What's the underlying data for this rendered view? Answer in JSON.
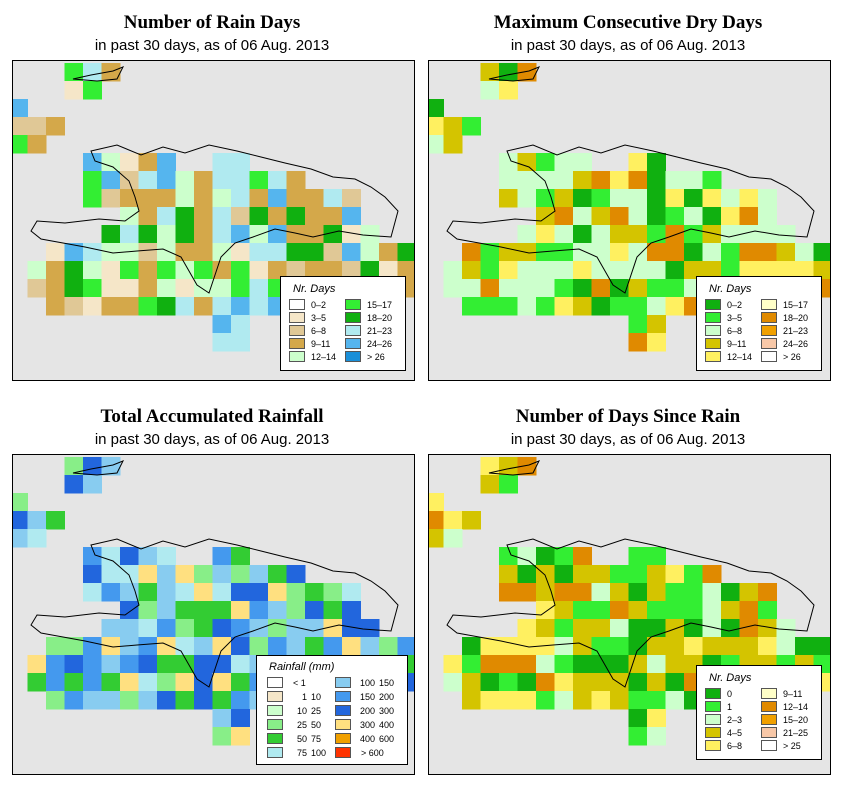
{
  "panels": [
    {
      "key": "rain_days",
      "title": "Number of Rain Days",
      "subtitle": "in past 30 days, as of  06 Aug. 2013",
      "legend_title": "Nr. Days",
      "legend": [
        {
          "label": "0–2",
          "color": "#ffffff"
        },
        {
          "label": "3–5",
          "color": "#f5e6c8"
        },
        {
          "label": "6–8",
          "color": "#e0c896"
        },
        {
          "label": "9–11",
          "color": "#d4a84a"
        },
        {
          "label": "12–14",
          "color": "#ccffcc"
        },
        {
          "label": "15–17",
          "color": "#33ee33"
        },
        {
          "label": "18–20",
          "color": "#10b010"
        },
        {
          "label": "21–23",
          "color": "#b0eaf0"
        },
        {
          "label": "24–26",
          "color": "#55b5ee"
        },
        {
          "label": "> 26",
          "color": "#1a8fd8"
        }
      ]
    },
    {
      "key": "dry_days",
      "title": "Maximum Consecutive Dry Days",
      "subtitle": "in past 30 days, as of  06 Aug. 2013",
      "legend_title": "Nr. Days",
      "legend": [
        {
          "label": "0–2",
          "color": "#10b010"
        },
        {
          "label": "3–5",
          "color": "#33ee33"
        },
        {
          "label": "6–8",
          "color": "#ccffcc"
        },
        {
          "label": "9–11",
          "color": "#d4c400"
        },
        {
          "label": "12–14",
          "color": "#fff060"
        },
        {
          "label": "15–17",
          "color": "#ffffc8"
        },
        {
          "label": "18–20",
          "color": "#e08a00"
        },
        {
          "label": "21–23",
          "color": "#f0a000"
        },
        {
          "label": "24–26",
          "color": "#f8c8a8"
        },
        {
          "label": "> 26",
          "color": "#ffffff"
        }
      ]
    },
    {
      "key": "rainfall",
      "title": "Total Accumulated Rainfall",
      "subtitle": "in past 30 days, as of  06 Aug. 2013",
      "legend_title": "Rainfall (mm)",
      "legend": [
        {
          "a": "",
          "b": "< 1",
          "color": "#ffffff"
        },
        {
          "a": "1",
          "b": "10",
          "color": "#f5e6c8"
        },
        {
          "a": "10",
          "b": "25",
          "color": "#ccffcc"
        },
        {
          "a": "25",
          "b": "50",
          "color": "#88ee88"
        },
        {
          "a": "50",
          "b": "75",
          "color": "#33cc33"
        },
        {
          "a": "75",
          "b": "100",
          "color": "#b0eaf0"
        },
        {
          "a": "100",
          "b": "150",
          "color": "#88ccf0"
        },
        {
          "a": "150",
          "b": "200",
          "color": "#4499ee"
        },
        {
          "a": "200",
          "b": "300",
          "color": "#2266dd"
        },
        {
          "a": "300",
          "b": "400",
          "color": "#ffe080"
        },
        {
          "a": "400",
          "b": "600",
          "color": "#f0a000"
        },
        {
          "a": "",
          "b": "> 600",
          "color": "#ff3300"
        }
      ]
    },
    {
      "key": "since_rain",
      "title": "Number of Days Since Rain",
      "subtitle": "in past 30 days, as of  06 Aug. 2013",
      "legend_title": "Nr. Days",
      "legend": [
        {
          "label": "0",
          "color": "#10b010"
        },
        {
          "label": "1",
          "color": "#33ee33"
        },
        {
          "label": "2–3",
          "color": "#ccffcc"
        },
        {
          "label": "4–5",
          "color": "#d4c400"
        },
        {
          "label": "6–8",
          "color": "#fff060"
        },
        {
          "label": "9–11",
          "color": "#ffffc8"
        },
        {
          "label": "12–14",
          "color": "#e08a00"
        },
        {
          "label": "15–20",
          "color": "#f0a000"
        },
        {
          "label": "21–25",
          "color": "#f8c8a8"
        },
        {
          "label": "> 25",
          "color": "#ffffff"
        }
      ]
    }
  ]
}
